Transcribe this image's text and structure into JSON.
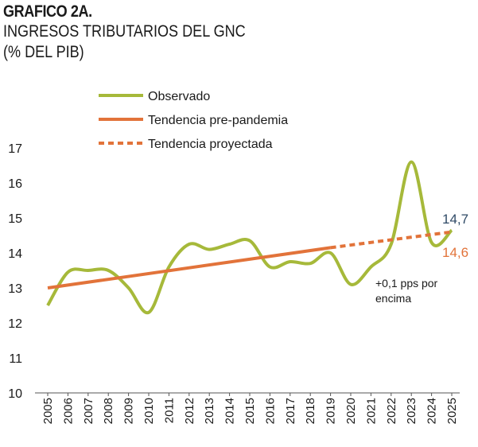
{
  "header": {
    "title": "GRAFICO 2A.",
    "subtitle": "INGRESOS TRIBUTARIOS DEL GNC",
    "unit": "(% DEL PIB)"
  },
  "colors": {
    "observed": "#a6b93a",
    "trend": "#e2733a",
    "label_observed": "#2f4a66",
    "label_trend": "#e2733a",
    "axis": "#555555"
  },
  "chart_data": {
    "type": "line",
    "title": "GRAFICO 2A.",
    "subtitle": "INGRESOS TRIBUTARIOS DEL GNC",
    "ylabel": "(% DEL PIB)",
    "ylim": [
      10,
      17
    ],
    "yticks": [
      "10",
      "11",
      "12",
      "13",
      "14",
      "15",
      "16",
      "17"
    ],
    "categories": [
      "2005",
      "2006",
      "2007",
      "2008",
      "2009",
      "2010",
      "2011",
      "2012",
      "2013",
      "2014",
      "2015",
      "2016",
      "2017",
      "2018",
      "2019",
      "2020",
      "2021",
      "2022",
      "2023",
      "2024",
      "2025"
    ],
    "grid": false,
    "legend_position": "top",
    "series": [
      {
        "name": "Observado",
        "style": "solid",
        "x": [
          2005,
          2006,
          2007,
          2008,
          2009,
          2010,
          2011,
          2012,
          2013,
          2014,
          2015,
          2016,
          2017,
          2018,
          2019,
          2020,
          2021,
          2022,
          2023,
          2024,
          2025
        ],
        "values": [
          12.5,
          13.45,
          13.5,
          13.5,
          13.0,
          12.3,
          13.6,
          14.25,
          14.1,
          14.25,
          14.35,
          13.6,
          13.75,
          13.7,
          14.0,
          13.1,
          13.6,
          14.25,
          16.6,
          14.3,
          14.65
        ]
      },
      {
        "name": "Tendencia pre-pandemia",
        "style": "solid",
        "x": [
          2005,
          2019
        ],
        "values": [
          13.0,
          14.15
        ]
      },
      {
        "name": "Tendencia proyectada",
        "style": "dashed",
        "x": [
          2019,
          2025
        ],
        "values": [
          14.15,
          14.6
        ]
      }
    ],
    "end_labels": {
      "observed": "14,7",
      "trend": "14,6"
    },
    "annotation": {
      "line1": "+0,1 pps por",
      "line2": "encima"
    }
  }
}
